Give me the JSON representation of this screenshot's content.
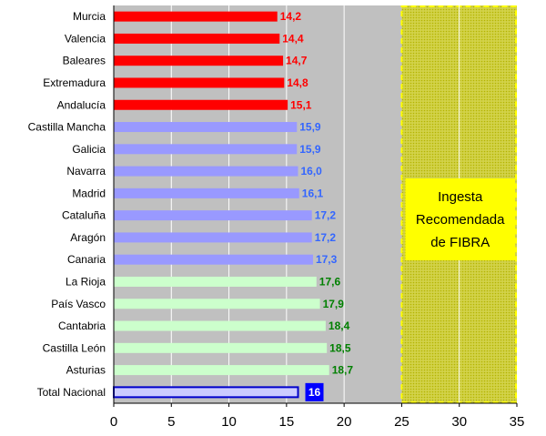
{
  "chart_data": {
    "type": "bar",
    "orientation": "horizontal",
    "title": "",
    "xlabel": "",
    "ylabel": "",
    "xlim": [
      0,
      35
    ],
    "x_ticks": [
      "0",
      "5",
      "10",
      "15",
      "20",
      "25",
      "30",
      "35"
    ],
    "grid": true,
    "legend": "none",
    "categories": [
      "Murcia",
      "Valencia",
      "Baleares",
      "Extremadura",
      "Andalucía",
      "Castilla Mancha",
      "Galicia",
      "Navarra",
      "Madrid",
      "Cataluña",
      "Aragón",
      "Canaria",
      "La Rioja",
      "País Vasco",
      "Cantabria",
      "Castilla León",
      "Asturias",
      "Total Nacional"
    ],
    "values": [
      14.2,
      14.4,
      14.7,
      14.8,
      15.1,
      15.9,
      15.9,
      16.0,
      16.1,
      17.2,
      17.2,
      17.3,
      17.6,
      17.9,
      18.4,
      18.5,
      18.7,
      16
    ],
    "value_labels": [
      "14,2",
      "14,4",
      "14,7",
      "14,8",
      "15,1",
      "15,9",
      "15,9",
      "16,0",
      "16,1",
      "17,2",
      "17,2",
      "17,3",
      "17,6",
      "17,9",
      "18,4",
      "18,5",
      "18,7",
      "16"
    ],
    "bar_colors": [
      "#ff0000",
      "#ff0000",
      "#ff0000",
      "#ff0000",
      "#ff0000",
      "#9999ff",
      "#9999ff",
      "#9999ff",
      "#9999ff",
      "#9999ff",
      "#9999ff",
      "#9999ff",
      "#ccffcc",
      "#ccffcc",
      "#ccffcc",
      "#ccffcc",
      "#ccffcc",
      "#ccccff"
    ],
    "label_colors": [
      "#ff0000",
      "#ff0000",
      "#ff0000",
      "#ff0000",
      "#ff0000",
      "#3366ff",
      "#3366ff",
      "#3366ff",
      "#3366ff",
      "#3366ff",
      "#3366ff",
      "#3366ff",
      "#008000",
      "#008000",
      "#008000",
      "#008000",
      "#008000",
      "#ffffff"
    ],
    "total_bar_border": "#0000cc",
    "total_label_bg": "#0000ff",
    "shaded_region": {
      "from": 0,
      "to": 25,
      "color": "#c0c0c0"
    },
    "recommended_band": {
      "from": 25,
      "to": 35,
      "text_lines": [
        "Ingesta",
        "Recomendada",
        "de FIBRA"
      ],
      "fill_color": "#c8c800",
      "box_color": "#ffff00",
      "border_color": "#ffff00"
    }
  }
}
